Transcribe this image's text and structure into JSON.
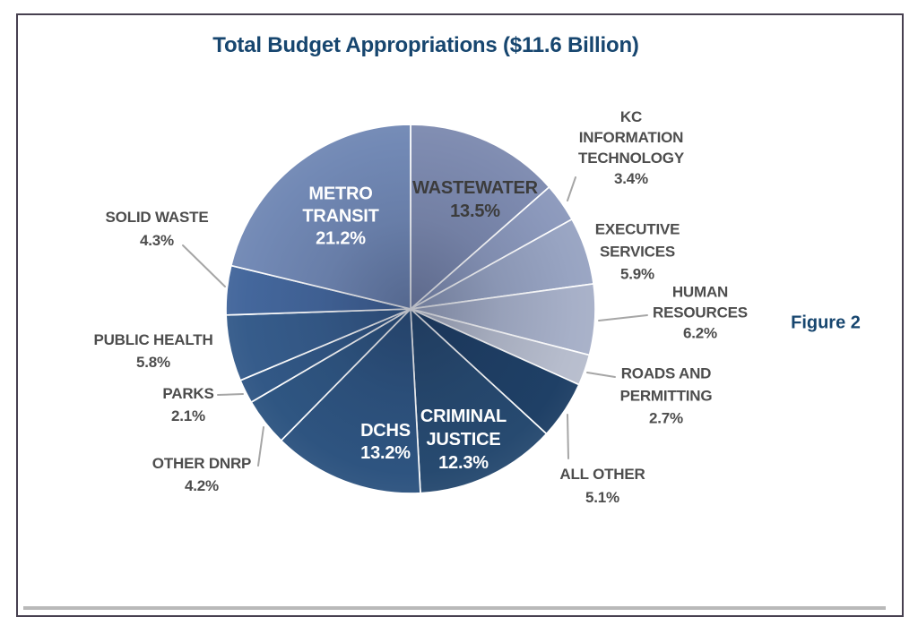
{
  "page": {
    "title_color": "#17466f",
    "outside_label_color": "#4d4d4d",
    "inside_label_color": "#ffffff",
    "frame_border_color": "#474050",
    "bottom_rule_color": "#b9b9b9",
    "leader_line_color": "#a6a6a6"
  },
  "chart_data": {
    "type": "pie",
    "title": "Total Budget Appropriations ($11.6 Billion)",
    "figure_label": "Figure 2",
    "total": "$11.6 Billion",
    "start_angle_deg": 0,
    "direction": "clockwise",
    "legend_position": "labels-around-pie",
    "slices": [
      {
        "label": "WASTEWATER",
        "pct": 13.5,
        "color": "#7e8bb0",
        "label_placement": "inside"
      },
      {
        "label": "KC INFORMATION TECHNOLOGY",
        "pct": 3.4,
        "color": "#8c99bc",
        "label_placement": "outside"
      },
      {
        "label": "EXECUTIVE SERVICES",
        "pct": 5.9,
        "color": "#98a4c2",
        "label_placement": "outside"
      },
      {
        "label": "HUMAN RESOURCES",
        "pct": 6.2,
        "color": "#a7b0c8",
        "label_placement": "outside"
      },
      {
        "label": "ROADS AND PERMITTING",
        "pct": 2.7,
        "color": "#b7bdcd",
        "label_placement": "outside"
      },
      {
        "label": "ALL OTHER",
        "pct": 5.1,
        "color": "#1f4066",
        "label_placement": "outside"
      },
      {
        "label": "CRIMINAL JUSTICE",
        "pct": 12.3,
        "color": "#274a70",
        "label_placement": "inside"
      },
      {
        "label": "DCHS",
        "pct": 13.2,
        "color": "#2e5480",
        "label_placement": "inside"
      },
      {
        "label": "OTHER DNRP",
        "pct": 4.2,
        "color": "#2f5682",
        "label_placement": "outside"
      },
      {
        "label": "PARKS",
        "pct": 2.1,
        "color": "#325886",
        "label_placement": "outside"
      },
      {
        "label": "PUBLIC HEALTH",
        "pct": 5.8,
        "color": "#365c8b",
        "label_placement": "outside"
      },
      {
        "label": "SOLID WASTE",
        "pct": 4.3,
        "color": "#44679c",
        "label_placement": "outside"
      },
      {
        "label": "METRO TRANSIT",
        "pct": 21.2,
        "color": "#7289b5",
        "label_placement": "inside"
      }
    ]
  },
  "labels": {
    "title": "Total Budget Appropriations ($11.6 Billion)",
    "figure": "Figure 2",
    "metro": [
      "METRO",
      "TRANSIT",
      "21.2%"
    ],
    "wastewater": [
      "WASTEWATER",
      "13.5%"
    ],
    "dchs": [
      "DCHS",
      "13.2%"
    ],
    "criminal": [
      "CRIMINAL",
      "JUSTICE",
      "12.3%"
    ],
    "kc_it": [
      "KC",
      "INFORMATION",
      "TECHNOLOGY",
      "3.4%"
    ],
    "exec": [
      "EXECUTIVE",
      "SERVICES",
      "5.9%"
    ],
    "hr": [
      "HUMAN",
      "RESOURCES",
      "6.2%"
    ],
    "roads": [
      "ROADS AND",
      "PERMITTING",
      "2.7%"
    ],
    "all_other": [
      "ALL OTHER",
      "5.1%"
    ],
    "solid_waste": [
      "SOLID WASTE",
      "4.3%"
    ],
    "public_health": [
      "PUBLIC HEALTH",
      "5.8%"
    ],
    "parks": [
      "PARKS",
      "2.1%"
    ],
    "other_dnrp": [
      "OTHER DNRP",
      "4.2%"
    ]
  }
}
